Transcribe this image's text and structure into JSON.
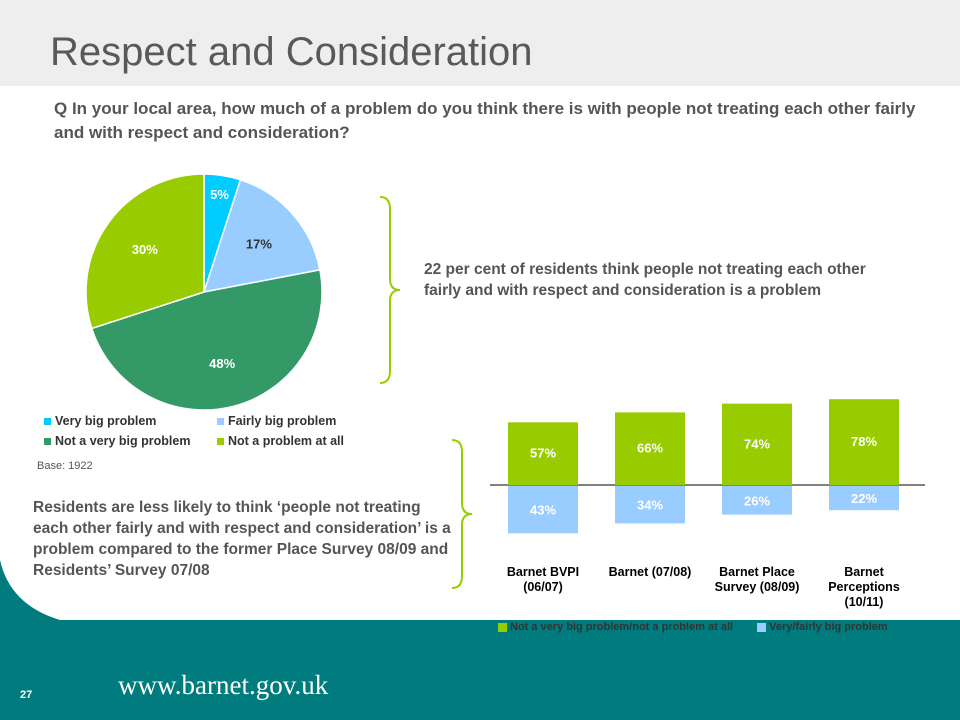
{
  "title": "Respect and Consideration",
  "question": "Q In your local area, how much of a problem do you think there is with people not treating each other fairly and with respect and consideration?",
  "base": "Base: 1922",
  "note_top": "22 per cent of residents think people not treating each other fairly and with respect and consideration is a problem",
  "note_bottom": "Residents are less likely to think ‘people not treating each other fairly and with respect and consideration’ is a problem compared to the former Place Survey 08/09 and Residents’ Survey 07/08",
  "footer": {
    "page_number": "27",
    "url": "www.barnet.gov.uk"
  },
  "colors": {
    "very_big": "#00ccff",
    "fairly_big": "#99ccff",
    "not_very_big": "#339966",
    "not_at_all": "#99cc00",
    "footer": "#007b7e"
  },
  "chart_data": [
    {
      "type": "pie",
      "categories": [
        "Very big problem",
        "Fairly big problem",
        "Not a very big problem",
        "Not a problem at all"
      ],
      "values": [
        5,
        17,
        48,
        30
      ],
      "labels": [
        "5%",
        "17%",
        "48%",
        "30%"
      ],
      "colors": [
        "#00ccff",
        "#99ccff",
        "#339966",
        "#99cc00"
      ]
    },
    {
      "type": "bar",
      "stacked": "diverging",
      "categories": [
        "Barnet BVPI (06/07)",
        "Barnet (07/08)",
        "Barnet Place Survey (08/09)",
        "Barnet Perceptions (10/11)"
      ],
      "category_lines": [
        [
          "Barnet BVPI",
          "(06/07)"
        ],
        [
          "Barnet (07/08)"
        ],
        [
          "Barnet Place",
          "Survey (08/09)"
        ],
        [
          "Barnet",
          "Perceptions",
          "(10/11)"
        ]
      ],
      "series": [
        {
          "name": "Not a very big problem/not a problem at all",
          "values": [
            57,
            66,
            74,
            78
          ],
          "labels": [
            "57%",
            "66%",
            "74%",
            "78%"
          ],
          "color": "#99cc00"
        },
        {
          "name": "Very/fairly big problem",
          "values": [
            43,
            34,
            26,
            22
          ],
          "labels": [
            "43%",
            "34%",
            "26%",
            "22%"
          ],
          "color": "#99ccff"
        }
      ]
    }
  ]
}
